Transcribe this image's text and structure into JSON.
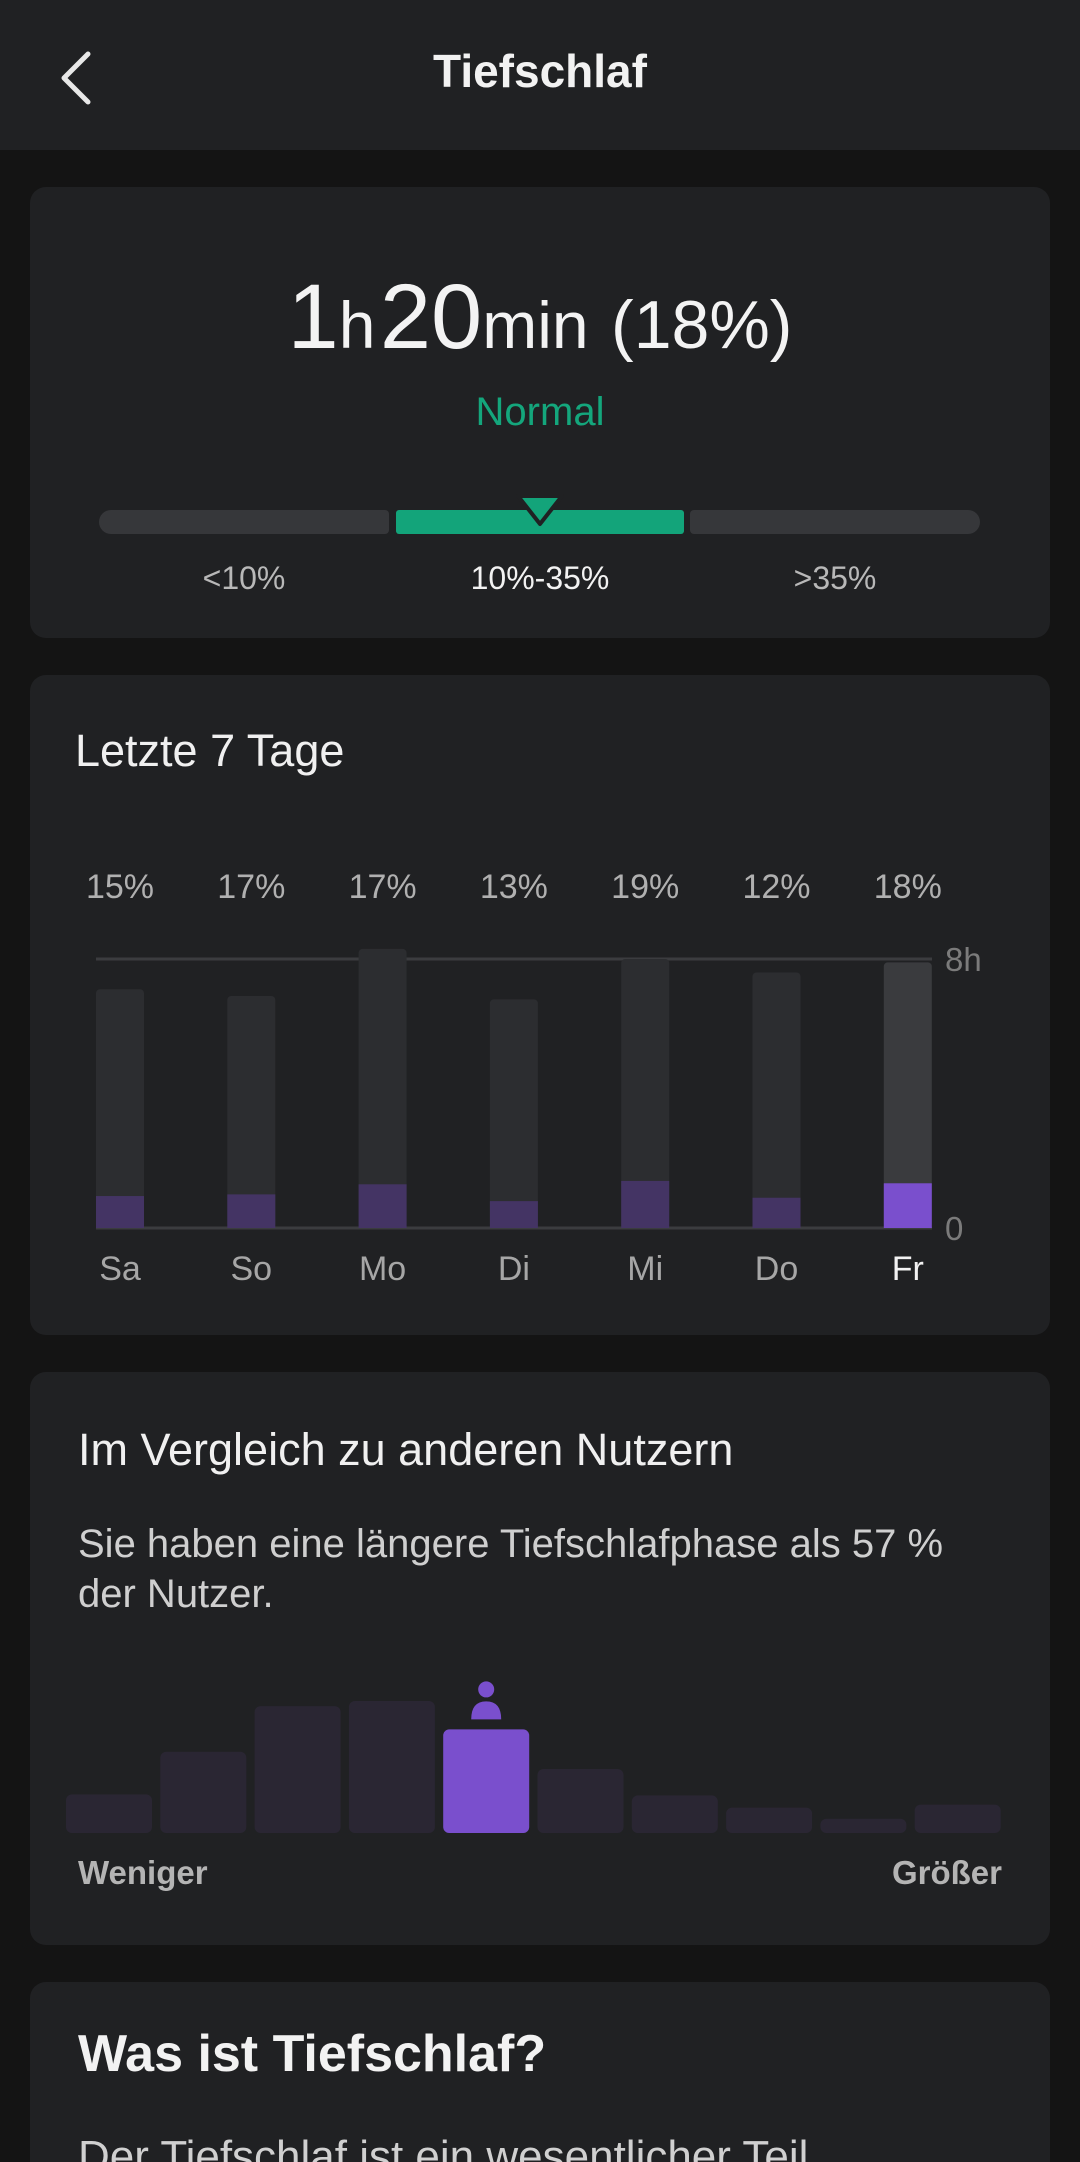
{
  "header": {
    "title": "Tiefschlaf",
    "back_icon": "chevron-left-icon"
  },
  "summary": {
    "hours": "1",
    "hours_unit": "h",
    "minutes": "20",
    "minutes_unit": "min",
    "percent": "(18%)",
    "status": "Normal",
    "status_color": "#14a67c",
    "range_labels": {
      "low": "<10%",
      "normal": "10%-35%",
      "high": ">35%"
    },
    "indicator_position": "normal"
  },
  "week": {
    "title": "Letzte 7 Tage",
    "chart_data": {
      "type": "bar",
      "categories": [
        "Sa",
        "So",
        "Mo",
        "Di",
        "Mi",
        "Do",
        "Fr"
      ],
      "percent_labels": [
        "15%",
        "17%",
        "17%",
        "13%",
        "19%",
        "12%",
        "18%"
      ],
      "series": [
        {
          "name": "",
          "values": [
            7.1,
            6.9,
            8.3,
            6.8,
            8.0,
            7.6,
            7.9
          ]
        },
        {
          "name": "",
          "values": [
            0.95,
            1.0,
            1.3,
            0.8,
            1.4,
            0.9,
            1.33
          ]
        }
      ],
      "ylim": [
        0,
        8
      ],
      "y_ticks": [
        "0",
        "8h"
      ],
      "highlight_category": "Fr",
      "colors": {
        "total": "#2c2d30",
        "total_highlight": "#3a3b3e",
        "deep": "#443464",
        "deep_highlight": "#7a4fcd"
      }
    }
  },
  "compare": {
    "title": "Im Vergleich zu anderen Nutzern",
    "text": "Sie haben eine längere Tiefschlafphase als 57 % der Nutzer.",
    "axis_left": "Weniger",
    "axis_right": "Größer",
    "user_icon": "person-icon",
    "chart_data": {
      "type": "bar",
      "values": [
        3.8,
        8.0,
        12.5,
        13.0,
        10.2,
        6.3,
        3.7,
        2.5,
        1.4,
        2.8
      ],
      "highlight_index": 4,
      "colors": {
        "bar": "#2a2633",
        "highlight": "#7a4fcd"
      }
    }
  },
  "info": {
    "title": "Was ist Tiefschlaf?",
    "body": "Der Tiefschlaf ist ein wesentlicher Teil"
  }
}
